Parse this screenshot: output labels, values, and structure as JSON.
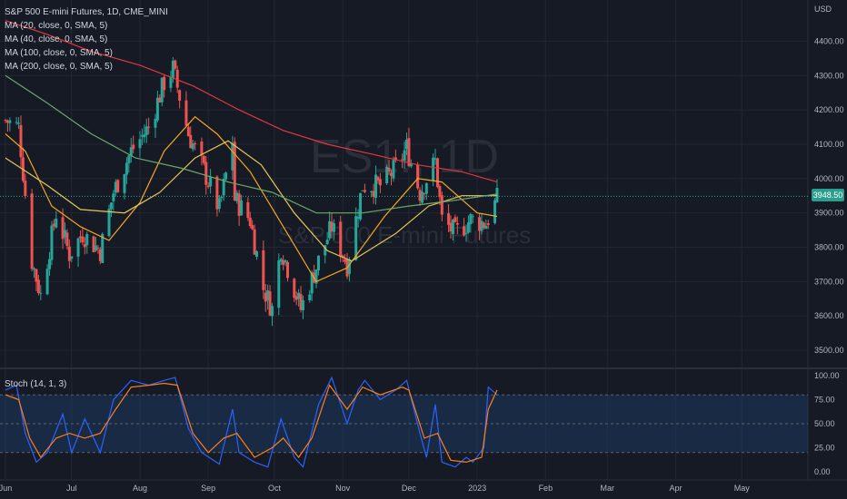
{
  "legend": {
    "symbol": "S&P 500 E-mini Futures, 1D, CME_MINI",
    "ma20": "MA (20, close, 0, SMA, 5)",
    "ma40": "MA (40, close, 0, SMA, 5)",
    "ma100": "MA (100, close, 0, SMA, 5)",
    "ma200": "MA (200, close, 0, SMA, 5)"
  },
  "watermark": {
    "ticker": "ES1!, 1D",
    "name": "S&P 500 E-mini Futures"
  },
  "stoch_label": "Stoch (14, 1, 3)",
  "last_price": "3948.50",
  "colors": {
    "background": "#161a25",
    "up": "#26a69a",
    "down": "#ef5350",
    "ma20": "#f5a623",
    "ma40": "#e6c65a",
    "ma100": "#6aa86a",
    "ma200": "#e0383e",
    "stoch_k": "#2962ff",
    "stoch_d": "#ff7d1a",
    "stoch_band": "#1e3a5f",
    "grid": "#232733",
    "axis_text": "#b2b5be",
    "price_tag": "#2a9d8f"
  },
  "chart_data": {
    "type": "candlestick",
    "currency": "USD",
    "ylim": [
      3450,
      4520
    ],
    "y_ticks": [
      3500,
      3600,
      3700,
      3800,
      3900,
      4000,
      4100,
      4200,
      4300,
      4400
    ],
    "y_tick_labels": [
      "3500.00",
      "3600.00",
      "3700.00",
      "3800.00",
      "3900.00",
      "4000.00",
      "4100.00",
      "4200.00",
      "4300.00",
      "4400.00"
    ],
    "x_range": [
      "2022-06-01",
      "2023-05-31"
    ],
    "x_ticks": [
      {
        "date": "2022-06-01",
        "label": "Jun"
      },
      {
        "date": "2022-07-01",
        "label": "Jul"
      },
      {
        "date": "2022-08-01",
        "label": "Aug"
      },
      {
        "date": "2022-09-01",
        "label": "Sep"
      },
      {
        "date": "2022-10-01",
        "label": "Oct"
      },
      {
        "date": "2022-11-01",
        "label": "Nov"
      },
      {
        "date": "2022-12-01",
        "label": "Dec"
      },
      {
        "date": "2023-01-01",
        "label": "2023"
      },
      {
        "date": "2023-02-01",
        "label": "Feb"
      },
      {
        "date": "2023-03-01",
        "label": "Mar"
      },
      {
        "date": "2023-04-01",
        "label": "Apr"
      },
      {
        "date": "2023-05-01",
        "label": "May"
      }
    ],
    "close_series": [
      {
        "date": "2022-06-01",
        "close": 4170
      },
      {
        "date": "2022-06-07",
        "close": 4150
      },
      {
        "date": "2022-06-13",
        "close": 3760
      },
      {
        "date": "2022-06-17",
        "close": 3660
      },
      {
        "date": "2022-06-24",
        "close": 3900
      },
      {
        "date": "2022-06-30",
        "close": 3780
      },
      {
        "date": "2022-07-06",
        "close": 3840
      },
      {
        "date": "2022-07-14",
        "close": 3790
      },
      {
        "date": "2022-07-20",
        "close": 3960
      },
      {
        "date": "2022-07-28",
        "close": 4080
      },
      {
        "date": "2022-08-05",
        "close": 4150
      },
      {
        "date": "2022-08-12",
        "close": 4280
      },
      {
        "date": "2022-08-16",
        "close": 4320
      },
      {
        "date": "2022-08-23",
        "close": 4130
      },
      {
        "date": "2022-08-29",
        "close": 4040
      },
      {
        "date": "2022-09-06",
        "close": 3910
      },
      {
        "date": "2022-09-12",
        "close": 4110
      },
      {
        "date": "2022-09-13",
        "close": 3940
      },
      {
        "date": "2022-09-20",
        "close": 3880
      },
      {
        "date": "2022-09-26",
        "close": 3680
      },
      {
        "date": "2022-09-30",
        "close": 3620
      },
      {
        "date": "2022-10-04",
        "close": 3800
      },
      {
        "date": "2022-10-13",
        "close": 3620
      },
      {
        "date": "2022-10-21",
        "close": 3760
      },
      {
        "date": "2022-10-27",
        "close": 3860
      },
      {
        "date": "2022-11-03",
        "close": 3750
      },
      {
        "date": "2022-11-10",
        "close": 3980
      },
      {
        "date": "2022-11-18",
        "close": 3980
      },
      {
        "date": "2022-11-25",
        "close": 4030
      },
      {
        "date": "2022-11-30",
        "close": 4090
      },
      {
        "date": "2022-12-06",
        "close": 3960
      },
      {
        "date": "2022-12-13",
        "close": 4050
      },
      {
        "date": "2022-12-16",
        "close": 3880
      },
      {
        "date": "2022-12-22",
        "close": 3840
      },
      {
        "date": "2022-12-29",
        "close": 3880
      },
      {
        "date": "2023-01-05",
        "close": 3870
      },
      {
        "date": "2023-01-10",
        "close": 3940
      }
    ],
    "moving_averages": [
      {
        "name": "MA (20, close, 0, SMA, 5)",
        "points": [
          [
            "2022-06-01",
            4130
          ],
          [
            "2022-06-10",
            4080
          ],
          [
            "2022-06-22",
            3920
          ],
          [
            "2022-07-05",
            3860
          ],
          [
            "2022-07-18",
            3820
          ],
          [
            "2022-08-01",
            3930
          ],
          [
            "2022-08-12",
            4080
          ],
          [
            "2022-08-26",
            4180
          ],
          [
            "2022-09-05",
            4130
          ],
          [
            "2022-09-20",
            4020
          ],
          [
            "2022-10-05",
            3860
          ],
          [
            "2022-10-20",
            3700
          ],
          [
            "2022-11-03",
            3740
          ],
          [
            "2022-11-20",
            3890
          ],
          [
            "2022-12-05",
            4000
          ],
          [
            "2022-12-16",
            3990
          ],
          [
            "2023-01-01",
            3900
          ],
          [
            "2023-01-10",
            3890
          ]
        ]
      },
      {
        "name": "MA (40, close, 0, SMA, 5)",
        "points": [
          [
            "2022-06-01",
            4060
          ],
          [
            "2022-06-20",
            3980
          ],
          [
            "2022-07-05",
            3910
          ],
          [
            "2022-07-25",
            3900
          ],
          [
            "2022-08-10",
            3960
          ],
          [
            "2022-08-26",
            4060
          ],
          [
            "2022-09-10",
            4110
          ],
          [
            "2022-09-25",
            4040
          ],
          [
            "2022-10-10",
            3900
          ],
          [
            "2022-10-25",
            3790
          ],
          [
            "2022-11-05",
            3760
          ],
          [
            "2022-11-25",
            3840
          ],
          [
            "2022-12-10",
            3920
          ],
          [
            "2022-12-25",
            3950
          ],
          [
            "2023-01-10",
            3950
          ]
        ]
      },
      {
        "name": "MA (100, close, 0, SMA, 5)",
        "points": [
          [
            "2022-06-01",
            4300
          ],
          [
            "2022-06-20",
            4220
          ],
          [
            "2022-07-10",
            4130
          ],
          [
            "2022-07-30",
            4060
          ],
          [
            "2022-08-20",
            4030
          ],
          [
            "2022-09-10",
            3990
          ],
          [
            "2022-09-30",
            3960
          ],
          [
            "2022-10-20",
            3900
          ],
          [
            "2022-11-10",
            3900
          ],
          [
            "2022-12-01",
            3920
          ],
          [
            "2022-12-20",
            3935
          ],
          [
            "2023-01-10",
            3955
          ]
        ]
      },
      {
        "name": "MA (200, close, 0, SMA, 5)",
        "points": [
          [
            "2022-06-01",
            4460
          ],
          [
            "2022-06-20",
            4420
          ],
          [
            "2022-07-10",
            4370
          ],
          [
            "2022-08-01",
            4330
          ],
          [
            "2022-08-25",
            4270
          ],
          [
            "2022-09-15",
            4200
          ],
          [
            "2022-10-05",
            4140
          ],
          [
            "2022-10-25",
            4100
          ],
          [
            "2022-11-15",
            4070
          ],
          [
            "2022-12-05",
            4040
          ],
          [
            "2022-12-25",
            4020
          ],
          [
            "2023-01-10",
            3990
          ]
        ]
      }
    ],
    "stochastic": {
      "name": "Stoch (14, 1, 3)",
      "ylim": [
        0,
        100
      ],
      "y_ticks": [
        0,
        25,
        50,
        75,
        100
      ],
      "y_tick_labels": [
        "0.00",
        "25.00",
        "50.00",
        "75.00",
        "100.00"
      ],
      "band": [
        20,
        80
      ],
      "k": [
        [
          "2022-06-01",
          85
        ],
        [
          "2022-06-06",
          90
        ],
        [
          "2022-06-10",
          40
        ],
        [
          "2022-06-15",
          10
        ],
        [
          "2022-06-20",
          20
        ],
        [
          "2022-06-27",
          60
        ],
        [
          "2022-07-01",
          20
        ],
        [
          "2022-07-07",
          55
        ],
        [
          "2022-07-14",
          20
        ],
        [
          "2022-07-20",
          75
        ],
        [
          "2022-07-28",
          95
        ],
        [
          "2022-08-05",
          90
        ],
        [
          "2022-08-12",
          95
        ],
        [
          "2022-08-17",
          98
        ],
        [
          "2022-08-23",
          45
        ],
        [
          "2022-08-29",
          20
        ],
        [
          "2022-09-06",
          8
        ],
        [
          "2022-09-12",
          65
        ],
        [
          "2022-09-15",
          20
        ],
        [
          "2022-09-22",
          10
        ],
        [
          "2022-09-28",
          5
        ],
        [
          "2022-10-04",
          55
        ],
        [
          "2022-10-10",
          15
        ],
        [
          "2022-10-14",
          5
        ],
        [
          "2022-10-21",
          70
        ],
        [
          "2022-10-27",
          98
        ],
        [
          "2022-11-03",
          50
        ],
        [
          "2022-11-08",
          85
        ],
        [
          "2022-11-11",
          95
        ],
        [
          "2022-11-18",
          75
        ],
        [
          "2022-11-25",
          85
        ],
        [
          "2022-11-30",
          95
        ],
        [
          "2022-12-06",
          40
        ],
        [
          "2022-12-09",
          15
        ],
        [
          "2022-12-13",
          70
        ],
        [
          "2022-12-16",
          10
        ],
        [
          "2022-12-22",
          5
        ],
        [
          "2022-12-27",
          15
        ],
        [
          "2022-12-30",
          10
        ],
        [
          "2023-01-04",
          25
        ],
        [
          "2023-01-06",
          88
        ],
        [
          "2023-01-10",
          80
        ]
      ],
      "d": [
        [
          "2022-06-01",
          80
        ],
        [
          "2022-06-07",
          75
        ],
        [
          "2022-06-12",
          35
        ],
        [
          "2022-06-17",
          15
        ],
        [
          "2022-06-24",
          35
        ],
        [
          "2022-06-30",
          40
        ],
        [
          "2022-07-07",
          35
        ],
        [
          "2022-07-14",
          40
        ],
        [
          "2022-07-21",
          65
        ],
        [
          "2022-07-28",
          88
        ],
        [
          "2022-08-05",
          90
        ],
        [
          "2022-08-12",
          92
        ],
        [
          "2022-08-18",
          90
        ],
        [
          "2022-08-25",
          40
        ],
        [
          "2022-09-01",
          20
        ],
        [
          "2022-09-08",
          35
        ],
        [
          "2022-09-14",
          40
        ],
        [
          "2022-09-22",
          15
        ],
        [
          "2022-09-30",
          25
        ],
        [
          "2022-10-05",
          35
        ],
        [
          "2022-10-12",
          15
        ],
        [
          "2022-10-18",
          35
        ],
        [
          "2022-10-26",
          90
        ],
        [
          "2022-11-03",
          65
        ],
        [
          "2022-11-10",
          88
        ],
        [
          "2022-11-18",
          80
        ],
        [
          "2022-11-28",
          88
        ],
        [
          "2022-12-01",
          85
        ],
        [
          "2022-12-08",
          35
        ],
        [
          "2022-12-14",
          40
        ],
        [
          "2022-12-20",
          12
        ],
        [
          "2022-12-27",
          10
        ],
        [
          "2023-01-03",
          15
        ],
        [
          "2023-01-06",
          65
        ],
        [
          "2023-01-10",
          85
        ]
      ]
    }
  }
}
